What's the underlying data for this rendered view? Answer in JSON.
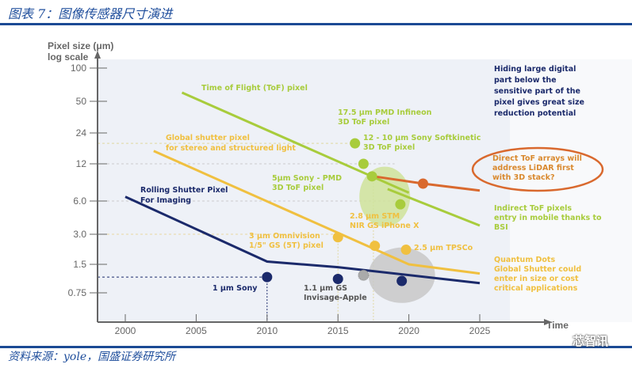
{
  "header": {
    "title": "图表 7：图像传感器尺寸演进"
  },
  "footer": {
    "source": "资料来源：yole，国盛证券研究所",
    "watermark": "芯智讯"
  },
  "colors": {
    "tof": "#a8cc3c",
    "gs": "#f0c040",
    "rolling": "#1b2a6b",
    "direct_tof": "#d9692e",
    "gray": "#999999",
    "rule": "#1b4a94"
  },
  "chart_data": {
    "type": "line",
    "title": "",
    "ylabel": "Pixel size (μm)\nlog scale",
    "ylabel_lines": [
      "Pixel size (μm)",
      "log scale"
    ],
    "xlabel": "Time",
    "x_ticks": [
      2000,
      2005,
      2010,
      2015,
      2020,
      2025
    ],
    "y_ticks": [
      "100",
      "50",
      "24",
      "12",
      "6.0",
      "3.0",
      "1.5",
      "0.75"
    ],
    "y_tick_values": [
      100,
      50,
      24,
      12,
      6.0,
      3.0,
      1.5,
      0.75
    ],
    "xlim": [
      1999,
      2027
    ],
    "yscale": "log",
    "series": [
      {
        "name": "Time of Flight (ToF) pixel",
        "color": "#a8cc3c",
        "points": [
          [
            2004,
            60
          ],
          [
            2020,
            7
          ]
        ]
      },
      {
        "name": "Indirect ToF (mobile)",
        "color": "#a8cc3c",
        "points": [
          [
            2018.5,
            7.5
          ],
          [
            2025,
            3.6
          ]
        ]
      },
      {
        "name": "Global shutter pixel for stereo and structured light",
        "color": "#f0c040",
        "points": [
          [
            2002,
            16
          ],
          [
            2020,
            1.5
          ],
          [
            2025,
            1.2
          ]
        ]
      },
      {
        "name": "Rolling Shutter Pixel For Imaging",
        "color": "#1b2a6b",
        "points": [
          [
            2000,
            6.5
          ],
          [
            2010,
            1.6
          ],
          [
            2015,
            1.4
          ],
          [
            2025,
            0.95
          ]
        ]
      },
      {
        "name": "Direct ToF arrays",
        "color": "#d9692e",
        "points": [
          [
            2017.5,
            9.5
          ],
          [
            2021,
            8.3
          ],
          [
            2025,
            7.3
          ]
        ]
      }
    ],
    "points": [
      {
        "label": "17.5 μm PMD Infineon\n3D ToF pixel",
        "x": 2016.2,
        "y": 19,
        "color": "#a8cc3c"
      },
      {
        "label": "12 - 10 μm Sony Softkinetic\n3D ToF pixel",
        "x": 2016.8,
        "y": 12,
        "color": "#a8cc3c"
      },
      {
        "label": "5μm Sony - PMD\n3D ToF pixel",
        "x": 2017.4,
        "y": 9.5,
        "color": "#a8cc3c"
      },
      {
        "label": "",
        "x": 2019.4,
        "y": 5.6,
        "color": "#a8cc3c"
      },
      {
        "label": "",
        "x": 2021,
        "y": 8.3,
        "color": "#d9692e"
      },
      {
        "label": "3 μm Omnivision\n1/5\" GS (5T) pixel",
        "x": 2015,
        "y": 2.8,
        "color": "#f0c040"
      },
      {
        "label": "2.8 μm STM\nNIR GS iPhone X",
        "x": 2017.6,
        "y": 2.3,
        "color": "#f0c040"
      },
      {
        "label": "2.5 μm TPSCo",
        "x": 2019.8,
        "y": 2.1,
        "color": "#f0c040"
      },
      {
        "label": "1 μm Sony",
        "x": 2010,
        "y": 1.1,
        "color": "#1b2a6b"
      },
      {
        "label": "1.1 μm GS\nInvisage-Apple",
        "x": 2015,
        "y": 1.05,
        "color": "#1b2a6b"
      },
      {
        "label": "",
        "x": 2016.8,
        "y": 1.15,
        "color": "#999999"
      },
      {
        "label": "",
        "x": 2019.5,
        "y": 1.0,
        "color": "#1b2a6b"
      }
    ],
    "series_labels": [
      {
        "text": "Time of Flight (ToF) pixel",
        "color": "#a8cc3c"
      },
      {
        "text": "Global shutter pixel\nfor stereo and structured light",
        "color": "#f0c040"
      },
      {
        "text": "Rolling Shutter Pixel\nFor Imaging",
        "color": "#1b2a6b"
      }
    ],
    "annotations": [
      {
        "text": "Hiding large digital\npart below the\nsensitive part of the\npixel gives great size\nreduction potential",
        "color": "#1b2a6b"
      },
      {
        "text": "Direct ToF arrays will\naddress LiDAR first\nwith 3D stack?",
        "color": "#d9892e"
      },
      {
        "text": "Indirect ToF pixels\nentry in mobile thanks to\nBSI",
        "color": "#a8cc3c"
      },
      {
        "text": "Quantum Dots\nGlobal Shutter could\nenter in size or cost\ncritical applications",
        "color": "#f0c040"
      }
    ],
    "grid": false,
    "legend": "none"
  }
}
